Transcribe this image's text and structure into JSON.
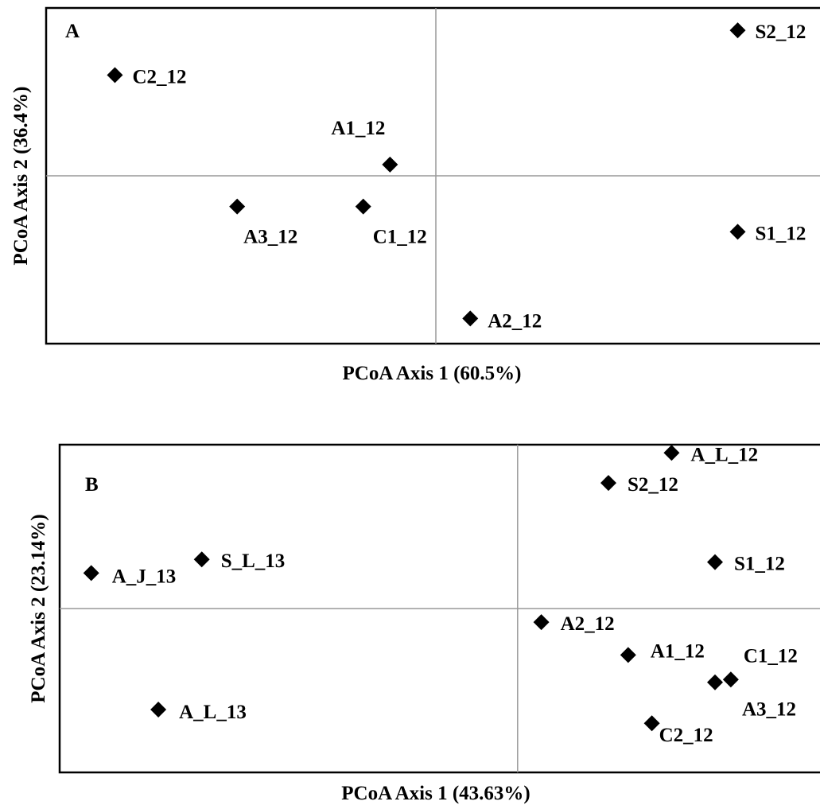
{
  "chart_data": [
    {
      "type": "scatter",
      "panel_label": "A",
      "xlabel": "PCoA Axis 1 (60.5%)",
      "ylabel": "PCoA Axis 2 (36.4%)",
      "xlim": [
        -5.1,
        5.1
      ],
      "ylim": [
        -3.0,
        3.0
      ],
      "grid": false,
      "points": [
        {
          "label": "C2_12",
          "x": -4.2,
          "y": 1.8
        },
        {
          "label": "A1_12",
          "x": -0.6,
          "y": 0.2
        },
        {
          "label": "A3_12",
          "x": -2.6,
          "y": -0.55
        },
        {
          "label": "C1_12",
          "x": -0.95,
          "y": -0.55
        },
        {
          "label": "S2_12",
          "x": 3.95,
          "y": 2.6
        },
        {
          "label": "S1_12",
          "x": 3.95,
          "y": -1.0
        },
        {
          "label": "A2_12",
          "x": 0.45,
          "y": -2.55
        }
      ]
    },
    {
      "type": "scatter",
      "panel_label": "B",
      "xlabel": "PCoA Axis 1 (43.63%)",
      "ylabel": "PCoA Axis 2 (23.14%)",
      "xlim": [
        -5.8,
        3.9
      ],
      "ylim": [
        -3.0,
        3.0
      ],
      "grid": false,
      "points": [
        {
          "label": "A_J_13",
          "x": -5.4,
          "y": 0.65
        },
        {
          "label": "S_L_13",
          "x": -4.0,
          "y": 0.9
        },
        {
          "label": "A_L_13",
          "x": -4.55,
          "y": -1.85
        },
        {
          "label": "A_L_12",
          "x": 1.95,
          "y": 2.85
        },
        {
          "label": "S2_12",
          "x": 1.15,
          "y": 2.3
        },
        {
          "label": "S1_12",
          "x": 2.5,
          "y": 0.85
        },
        {
          "label": "A2_12",
          "x": 0.3,
          "y": -0.25
        },
        {
          "label": "A1_12",
          "x": 1.4,
          "y": -0.85
        },
        {
          "label": "C1_12",
          "x": 2.7,
          "y": -1.3
        },
        {
          "label": "A3_12",
          "x": 2.5,
          "y": -1.35
        },
        {
          "label": "C2_12",
          "x": 1.7,
          "y": -2.1
        }
      ]
    }
  ]
}
